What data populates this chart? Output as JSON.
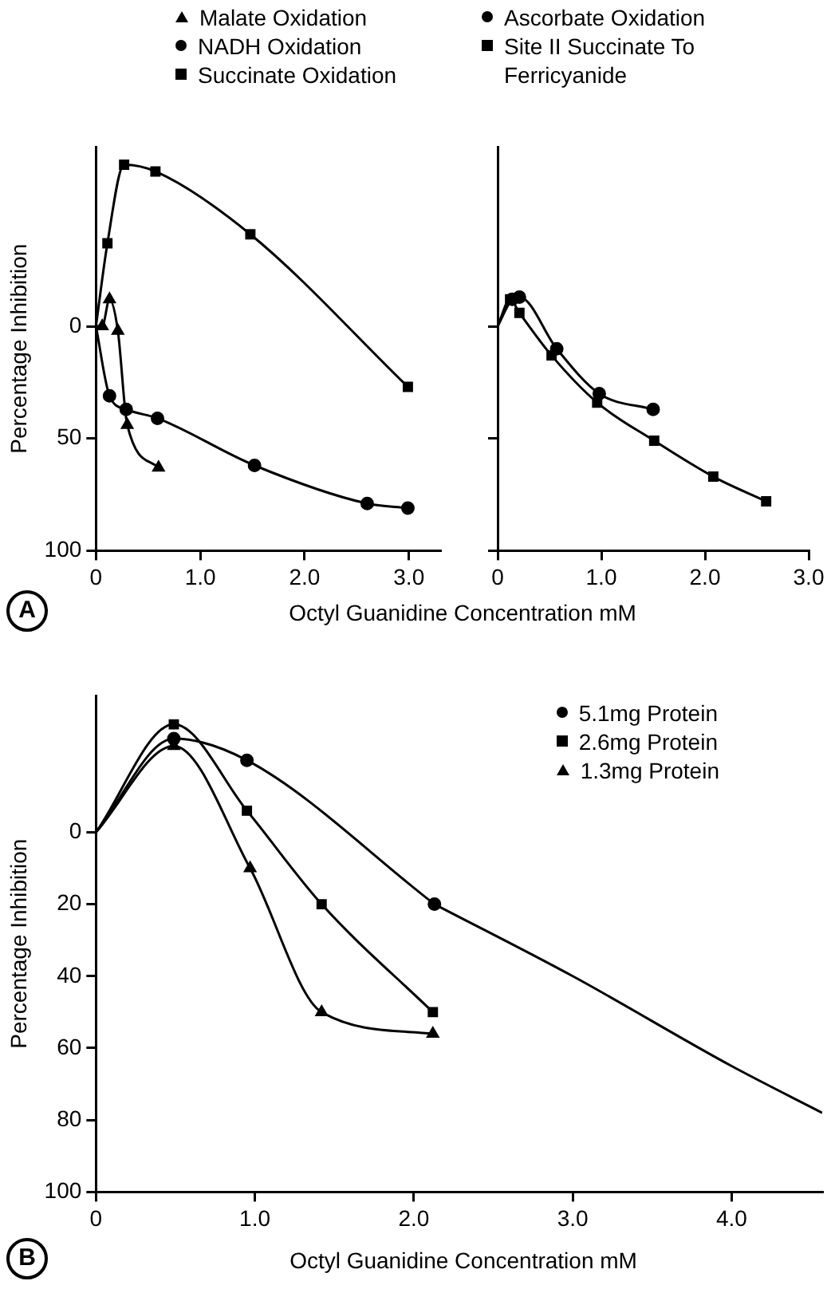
{
  "chart_data": [
    {
      "type": "line",
      "ylabel": "Percentage Inhibition",
      "xlabel": "Octyl Guanidine Concentration mM",
      "annotations": [
        "A"
      ],
      "legend": "top",
      "xlim": [
        0,
        3.3
      ],
      "ylim": [
        100,
        -80
      ],
      "xticks": [
        {
          "value": 0,
          "label": "0"
        },
        {
          "value": 1,
          "label": "1.0"
        },
        {
          "value": 2,
          "label": "2.0"
        },
        {
          "value": 3,
          "label": "3.0"
        }
      ],
      "yticks": [
        0,
        50,
        100
      ],
      "series": [
        {
          "name": "Malate Oxidation",
          "color": "#000000",
          "marker": "triangle",
          "x": [
            0,
            0.06,
            0.13,
            0.21,
            0.3,
            0.6
          ],
          "values": [
            0,
            0,
            -12,
            2,
            44,
            63
          ]
        },
        {
          "name": "NADH Oxidation",
          "color": "#000000",
          "marker": "circle",
          "x": [
            0,
            0.13,
            0.29,
            0.59,
            1.52,
            2.6,
            2.99
          ],
          "values": [
            0,
            31,
            37,
            41,
            62,
            79,
            81
          ]
        },
        {
          "name": "Succinate Oxidation",
          "color": "#000000",
          "marker": "square",
          "x": [
            0,
            0.11,
            0.27,
            0.57,
            1.48,
            2.99
          ],
          "values": [
            0,
            -37,
            -72,
            -69,
            -41,
            27
          ]
        }
      ]
    },
    {
      "type": "line",
      "legend": "top",
      "tick_labels": "x",
      "xlim": [
        0,
        3
      ],
      "ylim": [
        100,
        -80
      ],
      "xticks": [
        {
          "value": 0,
          "label": "0"
        },
        {
          "value": 1,
          "label": "1.0"
        },
        {
          "value": 2,
          "label": "2.0"
        },
        {
          "value": 3,
          "label": "3.0"
        }
      ],
      "yticks": [
        {
          "value": 0,
          "label": null
        },
        {
          "value": 50,
          "label": null
        },
        {
          "value": 100,
          "label": null
        }
      ],
      "series": [
        {
          "name": "Ascorbate Oxidation",
          "color": "#000000",
          "marker": "circle",
          "x": [
            0,
            0.14,
            0.21,
            0.57,
            0.98,
            1.5
          ],
          "values": [
            0,
            -12,
            -13,
            10,
            30,
            37
          ]
        },
        {
          "name": "Site II Succinate To Ferricyanide",
          "color": "#000000",
          "marker": "square",
          "x": [
            0,
            0.12,
            0.21,
            0.52,
            0.96,
            1.51,
            2.08,
            2.59
          ],
          "values": [
            0,
            -12,
            -6,
            13,
            34,
            51,
            67,
            78
          ]
        }
      ]
    },
    {
      "type": "line",
      "ylabel": "Percentage Inhibition",
      "xlabel": "Octyl Guanidine Concentration mM",
      "annotations": [
        "B"
      ],
      "legend": "top right",
      "xlim": [
        0,
        4.57
      ],
      "ylim": [
        100,
        -38
      ],
      "xticks": [
        {
          "value": 0,
          "label": "0"
        },
        {
          "value": 1,
          "label": "1.0"
        },
        {
          "value": 2,
          "label": "2.0"
        },
        {
          "value": 3,
          "label": "3.0"
        },
        {
          "value": 4,
          "label": "4.0"
        }
      ],
      "yticks": [
        0,
        20,
        40,
        60,
        80,
        100
      ],
      "series": [
        {
          "name": "5.1mg Protein",
          "color": "#000000",
          "marker": "circle",
          "x": [
            0,
            0.49,
            0.95,
            2.13
          ],
          "values": [
            0,
            -26,
            -20,
            20
          ]
        },
        {
          "type": "line",
          "color": "#000000",
          "marker": "none",
          "x": [
            2.13,
            3.0,
            4.0,
            4.57
          ],
          "values": [
            20,
            40,
            65,
            78
          ]
        },
        {
          "name": "2.6mg Protein",
          "color": "#000000",
          "marker": "square",
          "x": [
            0,
            0.49,
            0.95,
            1.42,
            2.12
          ],
          "values": [
            0,
            -30,
            -6,
            20,
            50
          ]
        },
        {
          "name": "1.3mg Protein",
          "color": "#000000",
          "marker": "triangle",
          "x": [
            0,
            0.49,
            0.97,
            1.42,
            2.12
          ],
          "values": [
            0,
            -24,
            10,
            50,
            56
          ]
        }
      ]
    }
  ]
}
